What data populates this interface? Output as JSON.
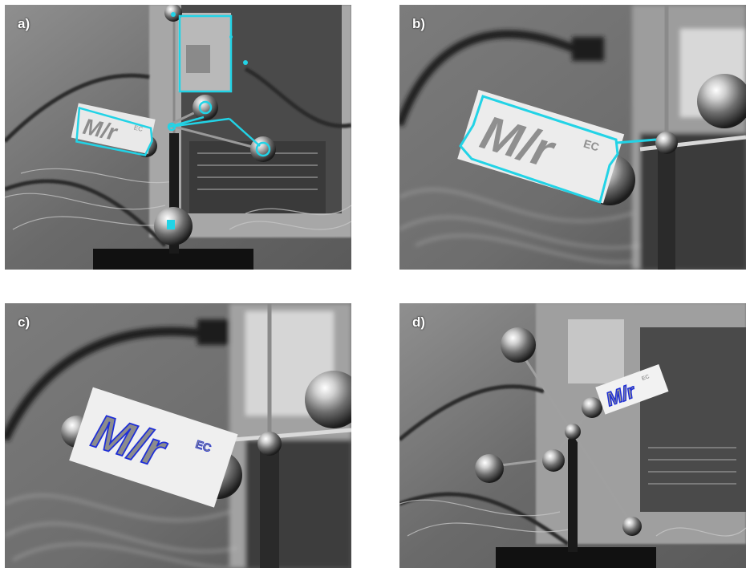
{
  "panels": [
    {
      "label": "a)",
      "contour_color": "#22d3e6"
    },
    {
      "label": "b)",
      "contour_color": "#22d3e6"
    },
    {
      "label": "c)",
      "contour_color": "#1f2fd6"
    },
    {
      "label": "d)",
      "contour_color": "#1f2fd6"
    }
  ],
  "logo_text": "M/r",
  "logo_superscript": "EC"
}
